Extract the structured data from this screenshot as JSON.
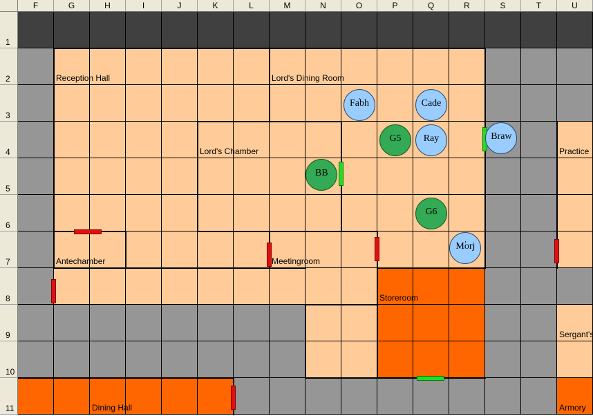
{
  "sheet": {
    "columns": [
      "F",
      "G",
      "H",
      "I",
      "J",
      "K",
      "L",
      "M",
      "N",
      "O",
      "P",
      "Q",
      "R",
      "S",
      "T",
      "U"
    ],
    "rows": [
      "1",
      "2",
      "3",
      "4",
      "5",
      "6",
      "7",
      "8",
      "9",
      "10",
      "11"
    ]
  },
  "colors": {
    "dark": "#404040",
    "stone": "#969696",
    "floor": "#ffcc99",
    "hazard": "#ff6600",
    "ally": "#99ccff",
    "enemy": "#33aa55",
    "door_closed": "#e01010",
    "door_open": "#22dd22"
  },
  "rooms": [
    {
      "name": "Reception Hall"
    },
    {
      "name": "Lord's Dining Room"
    },
    {
      "name": "Lord's Chamber"
    },
    {
      "name": "Practice"
    },
    {
      "name": "Antechamber"
    },
    {
      "name": "Meetingroom"
    },
    {
      "name": "Storeroom"
    },
    {
      "name": "Sergant's"
    },
    {
      "name": "Dining Hall"
    },
    {
      "name": "Armory"
    }
  ],
  "tokens": [
    {
      "label": "Fabh",
      "mark": "'",
      "type": "ally"
    },
    {
      "label": "Cade",
      "mark": "",
      "type": "ally"
    },
    {
      "label": "G5",
      "mark": "",
      "type": "enemy"
    },
    {
      "label": "Ray",
      "mark": "",
      "type": "ally"
    },
    {
      "label": "Braw",
      "mark": "",
      "type": "ally"
    },
    {
      "label": "BB",
      "mark": "",
      "type": "enemy"
    },
    {
      "label": "G6",
      "mark": "",
      "type": "enemy"
    },
    {
      "label": "Morj",
      "mark": "'",
      "type": "ally"
    }
  ]
}
